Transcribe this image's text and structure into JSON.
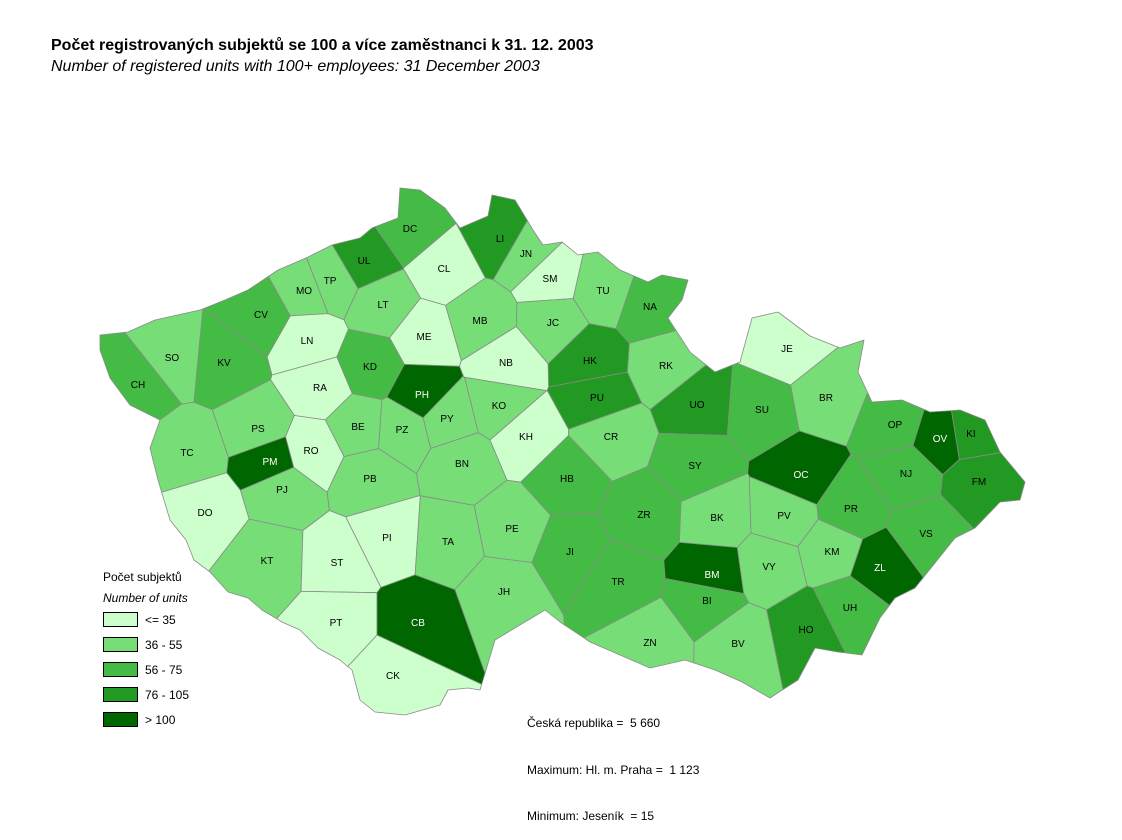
{
  "header": {
    "title": "Počet registrovaných subjektů se 100 a více zaměstnanci k 31. 12. 2003",
    "subtitle": "Number of registered units with 100+ employees: 31 December 2003"
  },
  "legend": {
    "title": "Počet subjektů",
    "subtitle": "Number of units",
    "classes": [
      {
        "label": "<= 35",
        "color": "#ccffcc"
      },
      {
        "label": "36 - 55",
        "color": "#77dd77"
      },
      {
        "label": "56 - 75",
        "color": "#44bb44"
      },
      {
        "label": "76 - 105",
        "color": "#229922"
      },
      {
        "label": "> 100",
        "color": "#006600"
      }
    ]
  },
  "stats": {
    "total": "Česká republika =  5 660",
    "maximum": "Maximum: Hl. m. Praha =  1 123",
    "minimum": "Minimum: Jeseník  = 15"
  },
  "districts": [
    {
      "code": "DC",
      "class": 2
    },
    {
      "code": "LI",
      "class": 3
    },
    {
      "code": "JN",
      "class": 1
    },
    {
      "code": "UL",
      "class": 3
    },
    {
      "code": "CL",
      "class": 0
    },
    {
      "code": "TP",
      "class": 1
    },
    {
      "code": "SM",
      "class": 0
    },
    {
      "code": "MO",
      "class": 1
    },
    {
      "code": "TU",
      "class": 1
    },
    {
      "code": "LT",
      "class": 1
    },
    {
      "code": "NA",
      "class": 2
    },
    {
      "code": "CV",
      "class": 2
    },
    {
      "code": "MB",
      "class": 1
    },
    {
      "code": "JC",
      "class": 1
    },
    {
      "code": "ME",
      "class": 0
    },
    {
      "code": "LN",
      "class": 0
    },
    {
      "code": "SO",
      "class": 1
    },
    {
      "code": "RK",
      "class": 1
    },
    {
      "code": "JE",
      "class": 0
    },
    {
      "code": "HK",
      "class": 3
    },
    {
      "code": "NB",
      "class": 0
    },
    {
      "code": "KV",
      "class": 2
    },
    {
      "code": "KD",
      "class": 2
    },
    {
      "code": "CH",
      "class": 2
    },
    {
      "code": "RA",
      "class": 0
    },
    {
      "code": "PH",
      "class": 4
    },
    {
      "code": "BR",
      "class": 1
    },
    {
      "code": "PU",
      "class": 3
    },
    {
      "code": "UO",
      "class": 3
    },
    {
      "code": "KO",
      "class": 1
    },
    {
      "code": "SU",
      "class": 2
    },
    {
      "code": "PY",
      "class": 1
    },
    {
      "code": "OP",
      "class": 2
    },
    {
      "code": "BE",
      "class": 1
    },
    {
      "code": "PS",
      "class": 1
    },
    {
      "code": "PZ",
      "class": 1
    },
    {
      "code": "OV",
      "class": 4
    },
    {
      "code": "KI",
      "class": 3
    },
    {
      "code": "KH",
      "class": 0
    },
    {
      "code": "CR",
      "class": 1
    },
    {
      "code": "RO",
      "class": 0
    },
    {
      "code": "TC",
      "class": 1
    },
    {
      "code": "PM",
      "class": 4
    },
    {
      "code": "BN",
      "class": 1
    },
    {
      "code": "SY",
      "class": 2
    },
    {
      "code": "OC",
      "class": 4
    },
    {
      "code": "NJ",
      "class": 2
    },
    {
      "code": "FM",
      "class": 3
    },
    {
      "code": "PB",
      "class": 1
    },
    {
      "code": "HB",
      "class": 2
    },
    {
      "code": "PJ",
      "class": 1
    },
    {
      "code": "DO",
      "class": 0
    },
    {
      "code": "ZR",
      "class": 2
    },
    {
      "code": "BK",
      "class": 1
    },
    {
      "code": "PV",
      "class": 1
    },
    {
      "code": "PR",
      "class": 2
    },
    {
      "code": "PE",
      "class": 1
    },
    {
      "code": "VS",
      "class": 2
    },
    {
      "code": "PI",
      "class": 0
    },
    {
      "code": "TA",
      "class": 1
    },
    {
      "code": "JI",
      "class": 2
    },
    {
      "code": "KM",
      "class": 1
    },
    {
      "code": "KT",
      "class": 1
    },
    {
      "code": "ST",
      "class": 0
    },
    {
      "code": "BM",
      "class": 4
    },
    {
      "code": "ZL",
      "class": 4
    },
    {
      "code": "VY",
      "class": 1
    },
    {
      "code": "TR",
      "class": 2
    },
    {
      "code": "JH",
      "class": 1
    },
    {
      "code": "BI",
      "class": 2
    },
    {
      "code": "UH",
      "class": 2
    },
    {
      "code": "PT",
      "class": 0
    },
    {
      "code": "CB",
      "class": 4
    },
    {
      "code": "HO",
      "class": 3
    },
    {
      "code": "ZN",
      "class": 1
    },
    {
      "code": "BV",
      "class": 1
    },
    {
      "code": "CK",
      "class": 0
    }
  ]
}
